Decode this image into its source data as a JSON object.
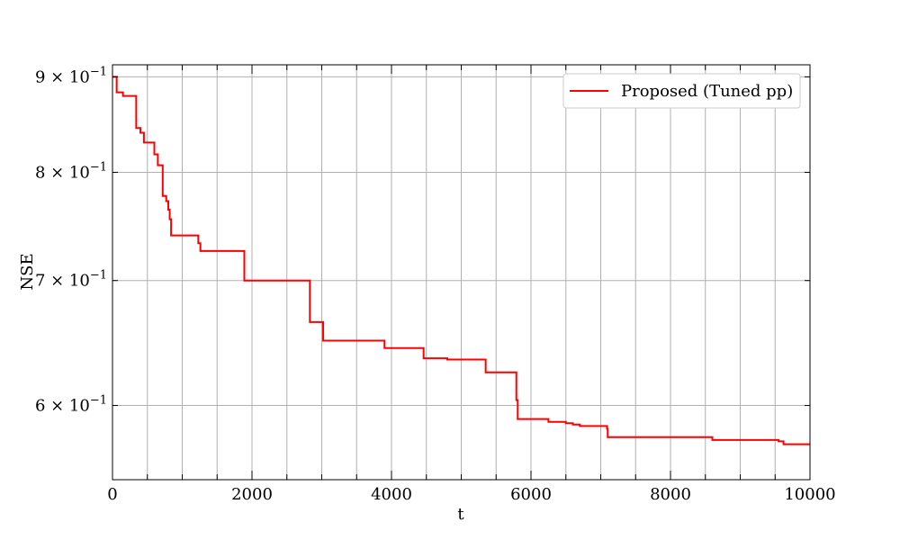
{
  "chart_data": {
    "type": "line",
    "title": "",
    "xlabel": "t",
    "ylabel": "NSE",
    "yscale": "log",
    "xlim": [
      0,
      10000
    ],
    "ylim": [
      0.5475,
      0.9135
    ],
    "grid": true,
    "legend": {
      "position": "top-right"
    },
    "x_ticks": [
      {
        "value": 0,
        "label": "0"
      },
      {
        "value": 2000,
        "label": "2000"
      },
      {
        "value": 4000,
        "label": "4000"
      },
      {
        "value": 6000,
        "label": "6000"
      },
      {
        "value": 8000,
        "label": "8000"
      },
      {
        "value": 10000,
        "label": "10000"
      }
    ],
    "x_minor_ticks": [
      500,
      1000,
      1500,
      2500,
      3000,
      3500,
      4500,
      5000,
      5500,
      6500,
      7000,
      7500,
      8500,
      9000,
      9500
    ],
    "y_ticks": [
      {
        "value": 0.6,
        "base": "6 × 10",
        "exp": "−1"
      },
      {
        "value": 0.7,
        "base": "7 × 10",
        "exp": "−1"
      },
      {
        "value": 0.8,
        "base": "8 × 10",
        "exp": "−1"
      },
      {
        "value": 0.9,
        "base": "9 × 10",
        "exp": "−1"
      }
    ],
    "series": [
      {
        "name": "Proposed (Tuned pp)",
        "color": "#ff0000",
        "step": "post",
        "x": [
          0,
          60,
          150,
          340,
          400,
          450,
          600,
          650,
          720,
          770,
          800,
          820,
          840,
          1230,
          1260,
          1890,
          2830,
          3020,
          3900,
          4460,
          4800,
          5350,
          5790,
          5810,
          6250,
          6500,
          6600,
          6700,
          6800,
          7090,
          7100,
          8600,
          9550,
          9620,
          10000
        ],
        "y": [
          0.9,
          0.883,
          0.879,
          0.845,
          0.84,
          0.83,
          0.818,
          0.807,
          0.777,
          0.772,
          0.764,
          0.755,
          0.74,
          0.733,
          0.726,
          0.7,
          0.665,
          0.65,
          0.644,
          0.636,
          0.635,
          0.625,
          0.604,
          0.59,
          0.588,
          0.587,
          0.586,
          0.585,
          0.585,
          0.583,
          0.577,
          0.575,
          0.574,
          0.572,
          0.572
        ]
      }
    ]
  }
}
